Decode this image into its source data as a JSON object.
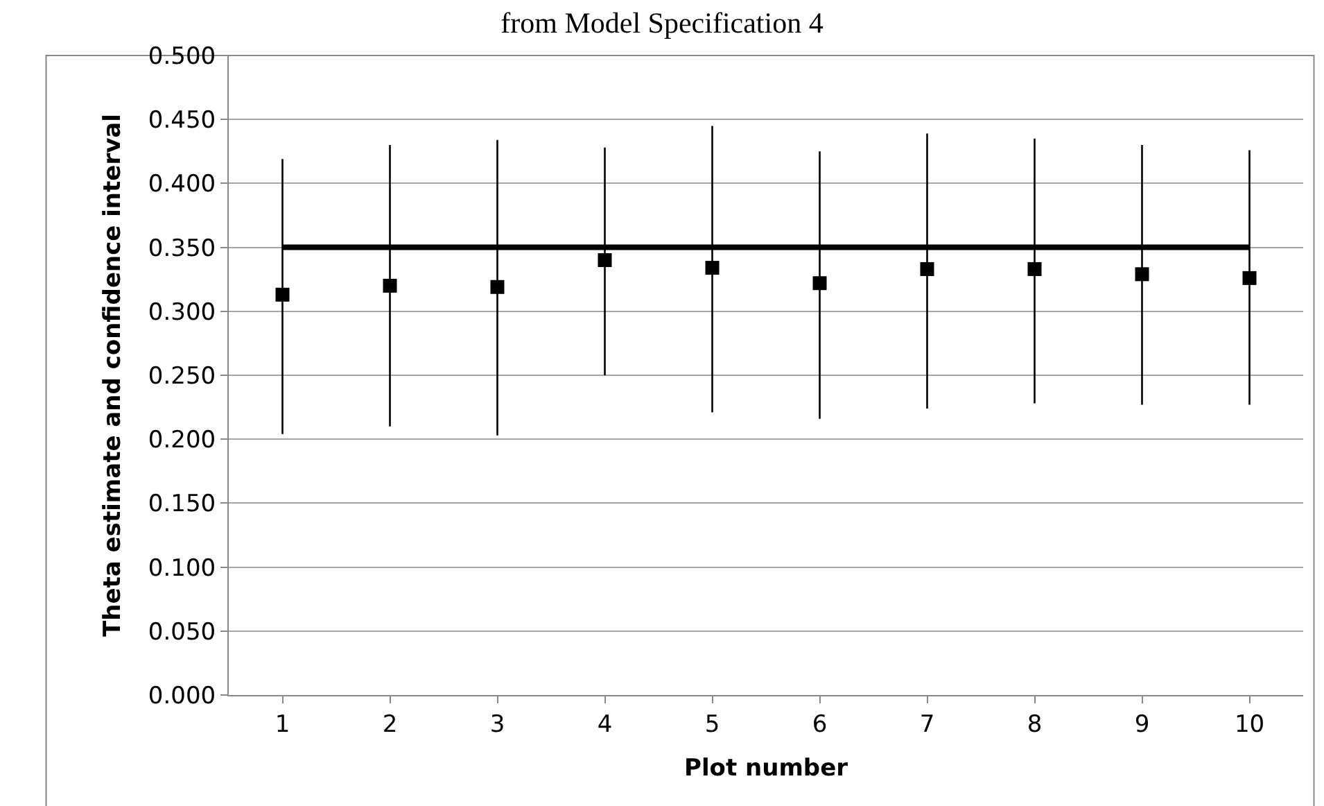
{
  "chart_data": {
    "type": "scatter",
    "title": "from Model Specification 4",
    "xlabel": "Plot number",
    "ylabel": "Theta estimate and confidence interval",
    "categories": [
      "1",
      "2",
      "3",
      "4",
      "5",
      "6",
      "7",
      "8",
      "9",
      "10"
    ],
    "series": [
      {
        "type": "line",
        "color": "#000000",
        "line_style": "solid",
        "marker": "none",
        "values": [
          0.35,
          0.35,
          0.35,
          0.35,
          0.35,
          0.35,
          0.35,
          0.35,
          0.35,
          0.35
        ]
      },
      {
        "type": "scatter",
        "color": "#000000",
        "marker": "square",
        "values": [
          0.313,
          0.32,
          0.319,
          0.34,
          0.334,
          0.322,
          0.333,
          0.333,
          0.329,
          0.326
        ],
        "errors": [
          [
            0.204,
            0.419
          ],
          [
            0.21,
            0.43
          ],
          [
            0.203,
            0.434
          ],
          [
            0.25,
            0.428
          ],
          [
            0.221,
            0.445
          ],
          [
            0.216,
            0.425
          ],
          [
            0.224,
            0.439
          ],
          [
            0.228,
            0.435
          ],
          [
            0.227,
            0.43
          ],
          [
            0.227,
            0.426
          ]
        ]
      }
    ],
    "ylim": [
      0,
      0.5
    ],
    "yticks": [
      {
        "value": 0,
        "label": "0.000"
      },
      {
        "value": 0.05,
        "label": "0.050"
      },
      {
        "value": 0.1,
        "label": "0.100"
      },
      {
        "value": 0.15,
        "label": "0.150"
      },
      {
        "value": 0.2,
        "label": "0.200"
      },
      {
        "value": 0.25,
        "label": "0.250"
      },
      {
        "value": 0.3,
        "label": "0.300"
      },
      {
        "value": 0.35,
        "label": "0.350"
      },
      {
        "value": 0.4,
        "label": "0.400"
      },
      {
        "value": 0.45,
        "label": "0.450"
      },
      {
        "value": 0.5,
        "label": "0.500"
      }
    ],
    "grid": "y",
    "legend": false
  }
}
